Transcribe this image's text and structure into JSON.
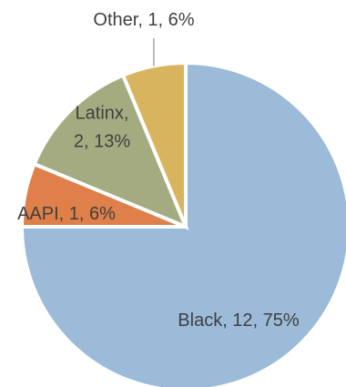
{
  "chart_data": {
    "type": "pie",
    "title": "",
    "categories": [
      "Black",
      "AAPI",
      "Latinx",
      "Other"
    ],
    "values": [
      12,
      1,
      2,
      1
    ],
    "percentages": [
      "75%",
      "6%",
      "13%",
      "6%"
    ],
    "colors": [
      "#9bbbd9",
      "#df7f4a",
      "#a4ab81",
      "#d9b45f"
    ],
    "labels": [
      {
        "lines": [
          "Black, 12, 75%"
        ]
      },
      {
        "lines": [
          "AAPI, 1, 6%"
        ]
      },
      {
        "lines": [
          "Latinx,",
          "2, 13%"
        ]
      },
      {
        "lines": [
          "Other, 1, 6%"
        ]
      }
    ],
    "legend": "none",
    "grid": false
  }
}
